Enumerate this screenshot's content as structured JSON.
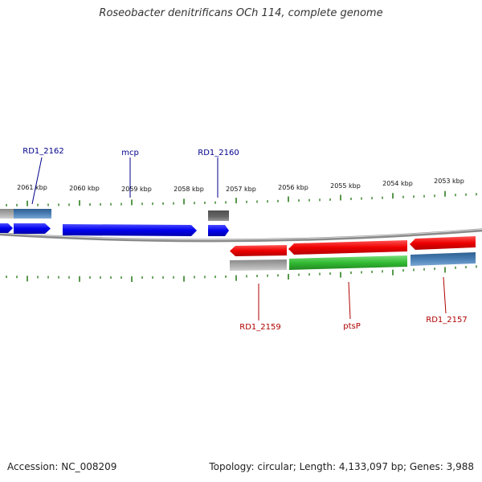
{
  "title": "Roseobacter denitrificans OCh 114, complete genome",
  "footer": {
    "accession": "Accession: NC_008209",
    "summary": "Topology: circular; Length: 4,133,097 bp; Genes: 3,988"
  },
  "colors": {
    "blue_gene": "#0000ee",
    "red_gene": "#ee0000",
    "green_gene": "#33bb33",
    "steel_blue_gene": "#4a7fb5",
    "gray_gene": "#a9a9a9",
    "dark_gray_gene": "#666666",
    "tick": "#2e7d1f",
    "backbone": "#8a8a8a",
    "upper_label": "#00008b",
    "lower_label": "#b00000"
  },
  "tick_labels": [
    "2061 kbp",
    "2060 kbp",
    "2059 kbp",
    "2058 kbp",
    "2057 kbp",
    "2056 kbp",
    "2055 kbp",
    "2054 kbp",
    "2053 kbp"
  ],
  "gene_labels_upper": [
    "RD1_2162",
    "mcp",
    "RD1_2160"
  ],
  "gene_labels_lower": [
    "RD1_2159",
    "ptsP",
    "RD1_2157"
  ]
}
